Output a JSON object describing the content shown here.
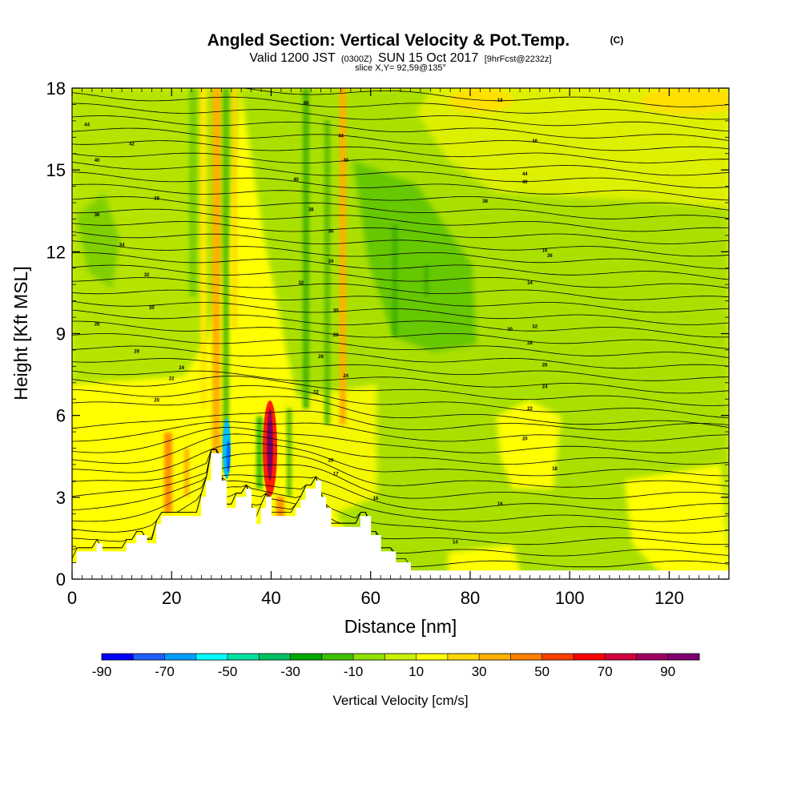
{
  "header": {
    "title_main": "Angled Section: Vertical Velocity & Pot.Temp.",
    "title_mark": "(C)",
    "valid_prefix": "Valid 1200 JST",
    "valid_utc": "(0300Z)",
    "valid_date": "SUN 15 Oct 2017",
    "valid_fcst": "[9hrFcst@2232z]",
    "slice": "slice X,Y= 92,59@135°"
  },
  "chart_data": {
    "type": "heatmap",
    "xlabel": "Distance [nm]",
    "ylabel": "Height [Kft MSL]",
    "xlim": [
      0,
      132
    ],
    "ylim": [
      0,
      18
    ],
    "x_ticks": [
      "0",
      "20",
      "40",
      "60",
      "80",
      "100",
      "120"
    ],
    "y_ticks": [
      "0",
      "3",
      "6",
      "9",
      "12",
      "15",
      "18"
    ],
    "terrain_profile": [
      [
        0,
        0.6
      ],
      [
        1,
        0.6
      ],
      [
        1,
        1.0
      ],
      [
        5,
        1.0
      ],
      [
        5,
        1.3
      ],
      [
        6,
        1.3
      ],
      [
        6,
        1.0
      ],
      [
        11,
        1.0
      ],
      [
        11,
        1.3
      ],
      [
        13,
        1.3
      ],
      [
        13,
        1.6
      ],
      [
        15,
        1.6
      ],
      [
        15,
        1.3
      ],
      [
        17,
        1.3
      ],
      [
        17,
        2.0
      ],
      [
        18,
        2.0
      ],
      [
        18,
        2.3
      ],
      [
        26,
        2.3
      ],
      [
        26,
        3.0
      ],
      [
        27,
        3.0
      ],
      [
        27,
        3.6
      ],
      [
        28,
        3.6
      ],
      [
        28,
        4.6
      ],
      [
        30,
        4.6
      ],
      [
        30,
        3.6
      ],
      [
        31,
        3.6
      ],
      [
        31,
        2.6
      ],
      [
        33,
        2.6
      ],
      [
        33,
        3.0
      ],
      [
        35,
        3.0
      ],
      [
        35,
        3.3
      ],
      [
        36,
        3.3
      ],
      [
        36,
        2.6
      ],
      [
        37,
        2.6
      ],
      [
        37,
        2.0
      ],
      [
        38,
        2.0
      ],
      [
        38,
        2.6
      ],
      [
        39,
        2.6
      ],
      [
        39,
        3.0
      ],
      [
        40,
        3.0
      ],
      [
        40,
        2.3
      ],
      [
        45,
        2.3
      ],
      [
        45,
        2.6
      ],
      [
        46,
        2.6
      ],
      [
        46,
        2.9
      ],
      [
        47,
        2.9
      ],
      [
        47,
        3.3
      ],
      [
        49,
        3.3
      ],
      [
        49,
        3.6
      ],
      [
        50,
        3.6
      ],
      [
        50,
        3.0
      ],
      [
        51,
        3.0
      ],
      [
        51,
        2.6
      ],
      [
        52,
        2.6
      ],
      [
        52,
        1.9
      ],
      [
        58,
        1.9
      ],
      [
        58,
        2.3
      ],
      [
        60,
        2.3
      ],
      [
        60,
        1.6
      ],
      [
        62,
        1.6
      ],
      [
        62,
        1.0
      ],
      [
        65,
        1.0
      ],
      [
        65,
        0.6
      ],
      [
        68,
        0.6
      ],
      [
        68,
        0.3
      ],
      [
        132,
        0.3
      ]
    ],
    "theta_labels": [
      {
        "text": "16",
        "x": 95,
        "y": 12.0
      },
      {
        "text": "18",
        "x": 86,
        "y": 17.5
      },
      {
        "text": "44",
        "x": 3,
        "y": 16.6
      },
      {
        "text": "40",
        "x": 5,
        "y": 15.3
      },
      {
        "text": "46",
        "x": 93,
        "y": 16.0
      },
      {
        "text": "44",
        "x": 91,
        "y": 14.8
      },
      {
        "text": "40",
        "x": 91,
        "y": 14.5
      },
      {
        "text": "38",
        "x": 83,
        "y": 13.8
      },
      {
        "text": "36",
        "x": 96,
        "y": 11.8
      },
      {
        "text": "34",
        "x": 92,
        "y": 10.8
      },
      {
        "text": "32",
        "x": 93,
        "y": 9.2
      },
      {
        "text": "30",
        "x": 88,
        "y": 9.1
      },
      {
        "text": "28",
        "x": 92,
        "y": 8.6
      },
      {
        "text": "26",
        "x": 95,
        "y": 7.8
      },
      {
        "text": "24",
        "x": 95,
        "y": 7.0
      },
      {
        "text": "22",
        "x": 92,
        "y": 6.2
      },
      {
        "text": "20",
        "x": 91,
        "y": 5.1
      },
      {
        "text": "18",
        "x": 97,
        "y": 4.0
      },
      {
        "text": "16",
        "x": 86,
        "y": 2.7
      },
      {
        "text": "14",
        "x": 77,
        "y": 1.3
      },
      {
        "text": "16",
        "x": 61,
        "y": 2.9
      },
      {
        "text": "17",
        "x": 53,
        "y": 3.8
      },
      {
        "text": "20",
        "x": 52,
        "y": 4.3
      },
      {
        "text": "48",
        "x": 47,
        "y": 17.4
      },
      {
        "text": "44",
        "x": 54,
        "y": 16.2
      },
      {
        "text": "40",
        "x": 55,
        "y": 15.3
      },
      {
        "text": "40",
        "x": 45,
        "y": 14.6
      },
      {
        "text": "38",
        "x": 48,
        "y": 13.5
      },
      {
        "text": "36",
        "x": 52,
        "y": 12.7
      },
      {
        "text": "34",
        "x": 52,
        "y": 11.6
      },
      {
        "text": "32",
        "x": 46,
        "y": 10.8
      },
      {
        "text": "30",
        "x": 53,
        "y": 9.8
      },
      {
        "text": "28",
        "x": 53,
        "y": 8.9
      },
      {
        "text": "26",
        "x": 50,
        "y": 8.1
      },
      {
        "text": "24",
        "x": 55,
        "y": 7.4
      },
      {
        "text": "22",
        "x": 49,
        "y": 6.8
      },
      {
        "text": "42",
        "x": 12,
        "y": 15.9
      },
      {
        "text": "38",
        "x": 17,
        "y": 13.9
      },
      {
        "text": "36",
        "x": 5,
        "y": 13.3
      },
      {
        "text": "34",
        "x": 10,
        "y": 12.2
      },
      {
        "text": "32",
        "x": 15,
        "y": 11.1
      },
      {
        "text": "30",
        "x": 16,
        "y": 9.9
      },
      {
        "text": "28",
        "x": 5,
        "y": 9.3
      },
      {
        "text": "26",
        "x": 13,
        "y": 8.3
      },
      {
        "text": "24",
        "x": 22,
        "y": 7.7
      },
      {
        "text": "22",
        "x": 20,
        "y": 7.3
      },
      {
        "text": "20",
        "x": 17,
        "y": 6.5
      }
    ],
    "legend": {
      "title": "Vertical Velocity [cm/s]",
      "tick_labels": [
        "-90",
        "-70",
        "-50",
        "-30",
        "-10",
        "10",
        "30",
        "50",
        "70",
        "90"
      ],
      "colors": [
        "#0000ff",
        "#1f5fff",
        "#00a0ff",
        "#00ffff",
        "#00e0a0",
        "#00c060",
        "#00a800",
        "#40c000",
        "#90e000",
        "#ccf000",
        "#ffff00",
        "#ffd800",
        "#ffb000",
        "#ff8000",
        "#ff4000",
        "#ff0000",
        "#d00040",
        "#a00060",
        "#800070"
      ]
    }
  },
  "colors": {
    "background_field": "#ffff00",
    "terrain": "#ffffff"
  }
}
